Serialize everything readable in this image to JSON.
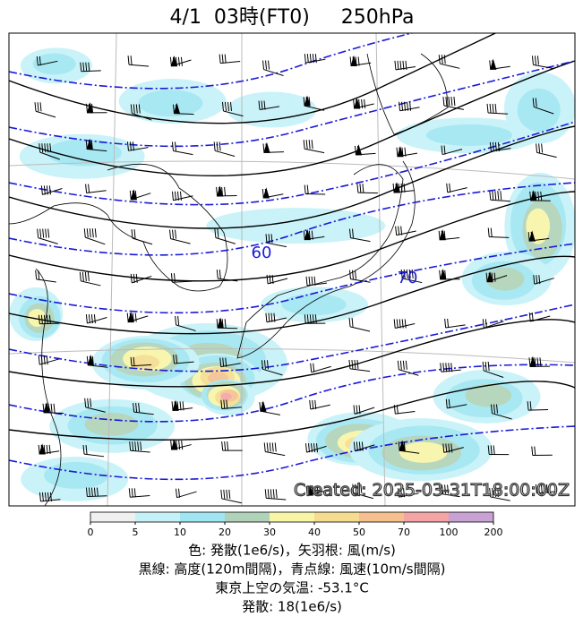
{
  "header": {
    "title": "4/1  03時(FT0)     250hPa"
  },
  "map": {
    "contour_labels": [
      60,
      70
    ],
    "created": "Created: 2025-03-31T18:00:00Z"
  },
  "colorbar": {
    "ticks": [
      0,
      5,
      10,
      20,
      30,
      40,
      50,
      70,
      100,
      200
    ],
    "colors": [
      "#f0f0f0",
      "#c4f2f8",
      "#9fe6f2",
      "#b0d2b8",
      "#f8f6a6",
      "#f5dc8e",
      "#f5c08e",
      "#f4a4a4",
      "#c9a2d4"
    ]
  },
  "caption": [
    "色: 発散(1e6/s)，矢羽根: 風(m/s)",
    "黒線: 高度(120m間隔)，青点線: 風速(10m/s間隔)",
    "東京上空の気温: -53.1°C",
    "発散: 18(1e6/s)"
  ]
}
